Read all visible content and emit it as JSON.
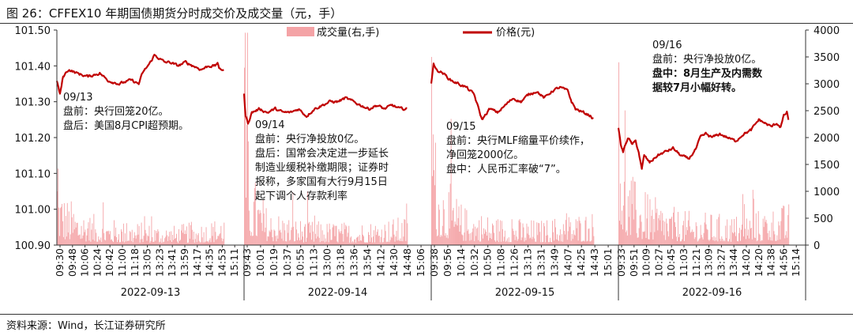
{
  "figure": {
    "title": "图 26：CFFEX10 年期国债期货分时成交价及成交量（元，手）",
    "source": "资料来源：Wind，长江证券研究所"
  },
  "chart_data": {
    "type": "line",
    "title": "",
    "xlabel": "",
    "ylabel": "",
    "y_left": {
      "range": [
        100.9,
        101.5
      ],
      "ticks": [
        "101.50",
        "101.40",
        "101.30",
        "101.20",
        "101.10",
        "101.00",
        "100.90"
      ]
    },
    "y_right": {
      "range": [
        0,
        4000
      ],
      "ticks": [
        "4000",
        "3500",
        "3000",
        "2500",
        "2000",
        "1500",
        "1000",
        "500",
        "0"
      ]
    },
    "legend": {
      "placement": "top-center",
      "items": [
        {
          "label": "成交量(右,手)",
          "type": "bar",
          "color": "#f4a3a6"
        },
        {
          "label": "价格(元)",
          "type": "line",
          "color": "#c00000"
        }
      ]
    },
    "x_tick_labels": [
      "09:30",
      "09:48",
      "10:06",
      "10:24",
      "10:42",
      "11:00",
      "11:18",
      "13:05",
      "13:23",
      "13:41",
      "13:59",
      "14:17",
      "14:35",
      "14:53",
      "15:11",
      "09:43",
      "10:01",
      "10:19",
      "10:37",
      "10:55",
      "11:13",
      "13:00",
      "13:18",
      "13:36",
      "13:54",
      "14:12",
      "14:30",
      "14:48",
      "15:06",
      "09:38",
      "09:56",
      "10:14",
      "10:32",
      "10:50",
      "11:08",
      "11:26",
      "13:13",
      "13:31",
      "13:49",
      "14:07",
      "14:25",
      "14:43",
      "15:01",
      "09:33",
      "09:51",
      "10:09",
      "10:27",
      "10:45",
      "11:03",
      "11:21",
      "13:09",
      "13:27",
      "13:44",
      "14:02",
      "14:20",
      "14:38",
      "14:56",
      "15:14"
    ],
    "days": [
      "2022-09-13",
      "2022-09-14",
      "2022-09-15",
      "2022-09-16"
    ],
    "price_keypoints": [
      [
        [
          0,
          101.36
        ],
        [
          4,
          101.32
        ],
        [
          8,
          101.37
        ],
        [
          15,
          101.39
        ],
        [
          25,
          101.38
        ],
        [
          40,
          101.37
        ],
        [
          55,
          101.38
        ],
        [
          65,
          101.36
        ],
        [
          80,
          101.35
        ],
        [
          95,
          101.36
        ],
        [
          105,
          101.35
        ],
        [
          110,
          101.38
        ],
        [
          120,
          101.41
        ],
        [
          125,
          101.43
        ],
        [
          132,
          101.42
        ],
        [
          138,
          101.41
        ],
        [
          145,
          101.41
        ],
        [
          155,
          101.4
        ],
        [
          165,
          101.41
        ],
        [
          175,
          101.4
        ],
        [
          185,
          101.39
        ],
        [
          195,
          101.4
        ],
        [
          203,
          101.4
        ],
        [
          206,
          101.41
        ],
        [
          208,
          101.39
        ],
        [
          214,
          101.39
        ]
      ],
      [
        [
          0,
          101.32
        ],
        [
          2,
          101.26
        ],
        [
          5,
          101.24
        ],
        [
          10,
          101.27
        ],
        [
          20,
          101.28
        ],
        [
          30,
          101.27
        ],
        [
          40,
          101.28
        ],
        [
          50,
          101.27
        ],
        [
          60,
          101.27
        ],
        [
          70,
          101.28
        ],
        [
          80,
          101.26
        ],
        [
          90,
          101.28
        ],
        [
          100,
          101.29
        ],
        [
          110,
          101.3
        ],
        [
          120,
          101.3
        ],
        [
          130,
          101.31
        ],
        [
          140,
          101.3
        ],
        [
          150,
          101.29
        ],
        [
          160,
          101.28
        ],
        [
          170,
          101.29
        ],
        [
          180,
          101.28
        ],
        [
          190,
          101.29
        ],
        [
          200,
          101.28
        ],
        [
          209,
          101.28
        ]
      ],
      [
        [
          0,
          101.35
        ],
        [
          3,
          101.41
        ],
        [
          6,
          101.39
        ],
        [
          15,
          101.38
        ],
        [
          25,
          101.36
        ],
        [
          35,
          101.35
        ],
        [
          45,
          101.34
        ],
        [
          55,
          101.32
        ],
        [
          65,
          101.25
        ],
        [
          75,
          101.28
        ],
        [
          85,
          101.27
        ],
        [
          95,
          101.29
        ],
        [
          105,
          101.31
        ],
        [
          115,
          101.3
        ],
        [
          125,
          101.32
        ],
        [
          135,
          101.33
        ],
        [
          145,
          101.31
        ],
        [
          155,
          101.33
        ],
        [
          165,
          101.34
        ],
        [
          175,
          101.33
        ],
        [
          180,
          101.3
        ],
        [
          185,
          101.28
        ],
        [
          195,
          101.27
        ],
        [
          205,
          101.26
        ],
        [
          208,
          101.25
        ]
      ],
      [
        [
          0,
          101.23
        ],
        [
          3,
          101.18
        ],
        [
          6,
          101.16
        ],
        [
          12,
          101.2
        ],
        [
          18,
          101.18
        ],
        [
          22,
          101.19
        ],
        [
          26,
          101.16
        ],
        [
          30,
          101.11
        ],
        [
          33,
          101.15
        ],
        [
          40,
          101.13
        ],
        [
          50,
          101.15
        ],
        [
          60,
          101.16
        ],
        [
          70,
          101.17
        ],
        [
          80,
          101.15
        ],
        [
          90,
          101.14
        ],
        [
          100,
          101.17
        ],
        [
          105,
          101.2
        ],
        [
          112,
          101.21
        ],
        [
          120,
          101.2
        ],
        [
          130,
          101.21
        ],
        [
          140,
          101.2
        ],
        [
          150,
          101.19
        ],
        [
          160,
          101.21
        ],
        [
          170,
          101.22
        ],
        [
          180,
          101.25
        ],
        [
          188,
          101.24
        ],
        [
          196,
          101.23
        ],
        [
          203,
          101.24
        ],
        [
          208,
          101.23
        ],
        [
          212,
          101.26
        ],
        [
          216,
          101.27
        ],
        [
          218,
          101.25
        ]
      ]
    ],
    "volume_profile": [
      [
        [
          0,
          1000
        ],
        [
          10,
          650
        ],
        [
          40,
          420
        ],
        [
          80,
          320
        ],
        [
          110,
          300
        ],
        [
          150,
          260
        ],
        [
          200,
          340
        ],
        [
          214,
          420
        ]
      ],
      [
        [
          0,
          3300
        ],
        [
          6,
          1050
        ],
        [
          30,
          480
        ],
        [
          80,
          320
        ],
        [
          140,
          300
        ],
        [
          209,
          380
        ]
      ],
      [
        [
          0,
          3500
        ],
        [
          6,
          1100
        ],
        [
          40,
          520
        ],
        [
          80,
          380
        ],
        [
          140,
          330
        ],
        [
          180,
          420
        ],
        [
          208,
          450
        ]
      ],
      [
        [
          0,
          3400
        ],
        [
          6,
          1100
        ],
        [
          30,
          700
        ],
        [
          80,
          450
        ],
        [
          150,
          400
        ],
        [
          218,
          550
        ]
      ]
    ],
    "annotations": [
      {
        "day": 0,
        "lines": [
          "09/13",
          "盘前：央行回笼20亿。",
          "盘后：美国8月CPI超预期。"
        ],
        "bold": []
      },
      {
        "day": 1,
        "lines": [
          "09/14",
          "盘前：央行净投放0亿。",
          "盘后：国常会决定进一步延长",
          "制造业缓税补缴期限；证券时",
          "报称，多家国有大行9月15日",
          "起下调个人存款利率"
        ],
        "bold": []
      },
      {
        "day": 2,
        "lines": [
          "09/15",
          "盘前：央行MLF缩量平价续作，",
          "净回笼2000亿。",
          "盘中：人民币汇率破“7”。"
        ],
        "bold": []
      },
      {
        "day": 3,
        "lines": [
          "09/16",
          "盘前：央行净投放0亿。",
          "盘中：8月生产及内需数",
          "据较7月小幅好转。"
        ],
        "bold": [
          2,
          3
        ]
      }
    ],
    "colors": {
      "price_line": "#c00000",
      "volume_bar": "#f4a3a6",
      "axis": "#333333"
    }
  }
}
